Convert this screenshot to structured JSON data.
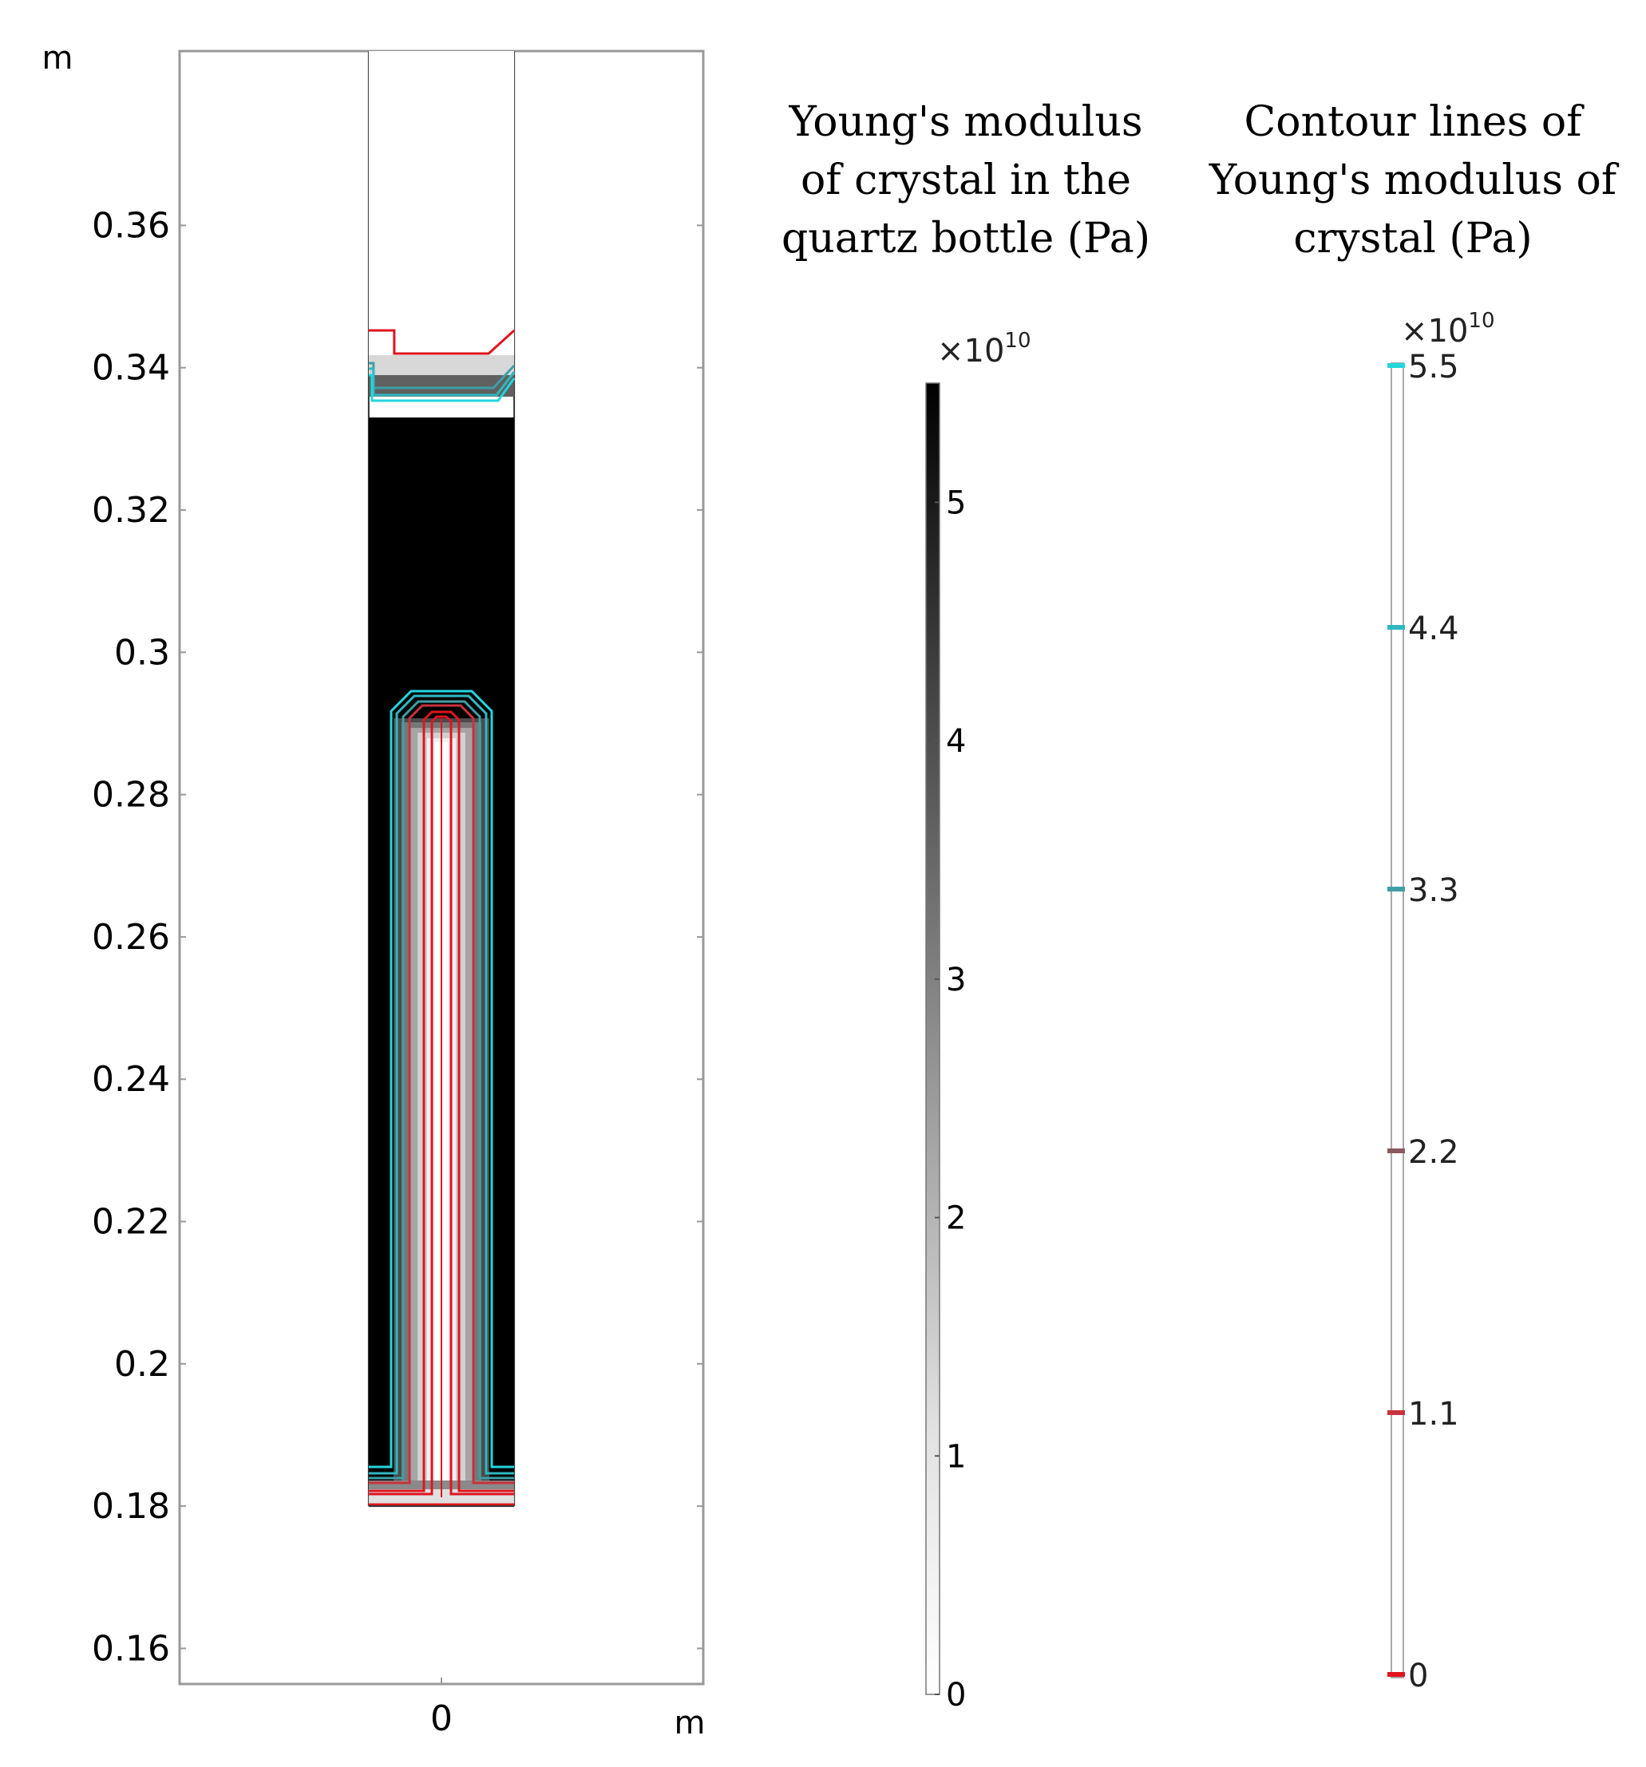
{
  "chart_data": [
    {
      "type": "heatmap",
      "xlabel": "m",
      "ylabel": "m",
      "xlim": [
        -0.18,
        0.18
      ],
      "ylim": [
        0.155,
        0.3845
      ],
      "xticks": [
        0
      ],
      "yticks": [
        0.16,
        0.18,
        0.2,
        0.22,
        0.24,
        0.26,
        0.28,
        0.3,
        0.32,
        0.34,
        0.36
      ],
      "ytick_labels": [
        "0.16",
        "0.18",
        "0.2",
        "0.22",
        "0.24",
        "0.26",
        "0.28",
        "0.3",
        "0.32",
        "0.34",
        "0.36"
      ],
      "xtick_labels": [
        "0"
      ],
      "geometry": {
        "bottle_x": [
          -0.05,
          0.05
        ],
        "crystal_y": [
          0.18,
          0.333
        ],
        "seed_rod_x": [
          -0.02,
          0.02
        ],
        "seed_rod_top_y": 0.289
      }
    },
    {
      "type": "colorbar",
      "title_lines": [
        "Young's modulus",
        "of crystal in the",
        "quartz bottle (Pa)"
      ],
      "multiplier_base": "×10",
      "multiplier_exp": "10",
      "range": [
        0,
        5.5
      ],
      "ticks": [
        0,
        1,
        2,
        3,
        4,
        5
      ],
      "tick_labels": [
        "0",
        "1",
        "2",
        "3",
        "4",
        "5"
      ],
      "colors": [
        "#ffffff",
        "#000000"
      ]
    },
    {
      "type": "contour_legend",
      "title_lines": [
        "Contour lines of",
        "Young's modulus of",
        "crystal (Pa)"
      ],
      "multiplier_base": "×10",
      "multiplier_exp": "10",
      "range": [
        0,
        5.5
      ],
      "levels": [
        0,
        1.1,
        2.2,
        3.3,
        4.4,
        5.5
      ],
      "level_labels": [
        "0",
        "1.1",
        "2.2",
        "3.3",
        "4.4",
        "5.5"
      ],
      "level_colors": [
        "#e0141e",
        "#c8323c",
        "#8a5a5e",
        "#3e9ea6",
        "#2fb8c0",
        "#22d6dc"
      ]
    }
  ]
}
